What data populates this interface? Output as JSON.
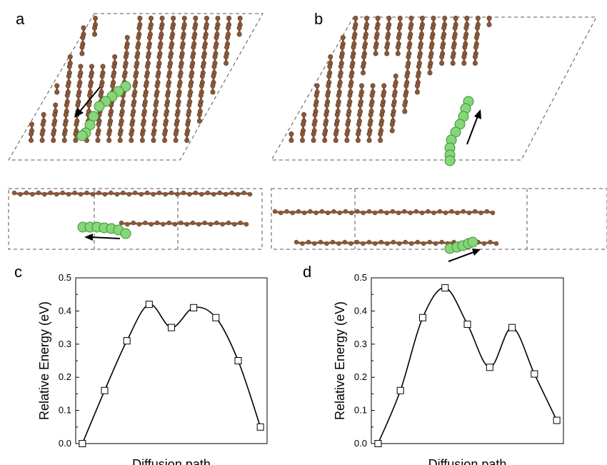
{
  "panels": {
    "a": "a",
    "b": "b",
    "c": "c",
    "d": "d"
  },
  "colors": {
    "carbon": "#8a5a3b",
    "carbon_stroke": "#5a3520",
    "lithium": "#86d67a",
    "lithium_stroke": "#3f8f36",
    "cell_line": "#555555"
  },
  "chart_data": [
    {
      "type": "line",
      "panel": "c",
      "xlabel": "Diffusion path",
      "ylabel": "Relative Energy (eV)",
      "ylim": [
        0.0,
        0.5
      ],
      "yticks": [
        "0.0",
        "0.1",
        "0.2",
        "0.3",
        "0.4",
        "0.5"
      ],
      "x": [
        0,
        1,
        2,
        3,
        4,
        5,
        6,
        7,
        8
      ],
      "values": [
        0.0,
        0.16,
        0.31,
        0.42,
        0.35,
        0.41,
        0.38,
        0.25,
        0.05
      ],
      "marker": "open-square",
      "grid": false
    },
    {
      "type": "line",
      "panel": "d",
      "xlabel": "Diffusion path",
      "ylabel": "Relative Energy (eV)",
      "ylim": [
        0.0,
        0.5
      ],
      "yticks": [
        "0.0",
        "0.1",
        "0.2",
        "0.3",
        "0.4",
        "0.5"
      ],
      "x": [
        0,
        1,
        2,
        3,
        4,
        5,
        6,
        7,
        8
      ],
      "values": [
        0.0,
        0.16,
        0.38,
        0.47,
        0.36,
        0.23,
        0.35,
        0.21,
        0.07
      ],
      "marker": "open-square",
      "grid": false
    }
  ]
}
